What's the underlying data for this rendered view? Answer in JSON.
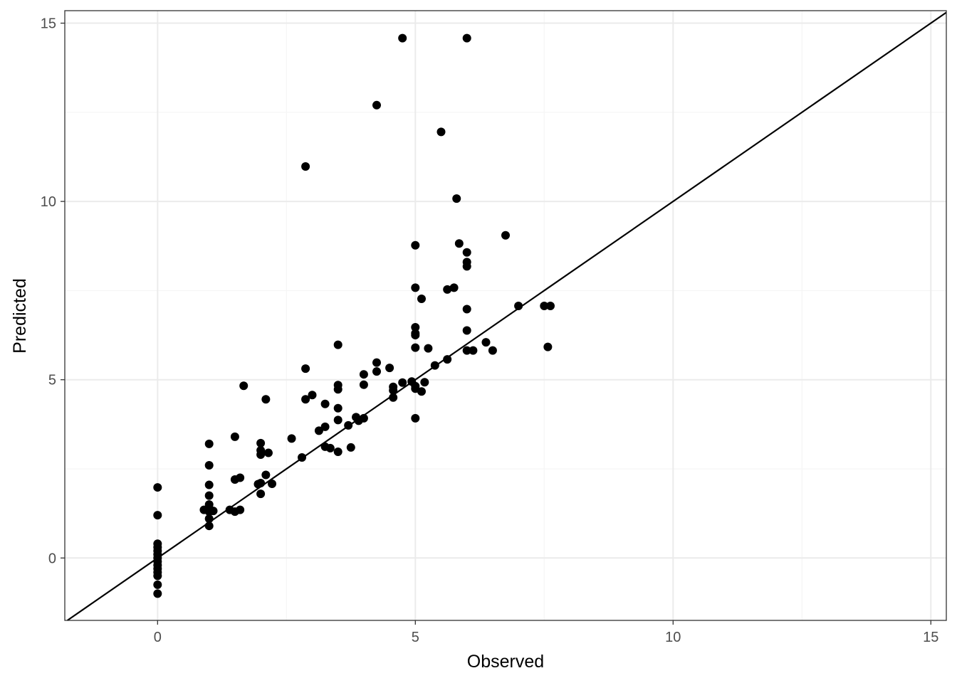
{
  "chart_data": {
    "type": "scatter",
    "xlabel": "Observed",
    "ylabel": "Predicted",
    "xlim": [
      -1.8,
      15.3
    ],
    "ylim": [
      -1.75,
      15.35
    ],
    "x_ticks": [
      0,
      5,
      10,
      15
    ],
    "y_ticks": [
      0,
      5,
      10,
      15
    ],
    "x_tick_labels": [
      "0",
      "5",
      "10",
      "15"
    ],
    "y_tick_labels": [
      "0",
      "5",
      "10",
      "15"
    ],
    "grid": true,
    "reference_line": {
      "type": "identity",
      "slope": 1,
      "intercept": 0
    },
    "colors": {
      "points": "#000000",
      "line": "#000000",
      "grid_major": "#ebebeb",
      "grid_minor": "#f5f5f5",
      "panel_border": "#333333"
    },
    "points": [
      {
        "x": 0,
        "y": 1.98
      },
      {
        "x": 0,
        "y": 1.2
      },
      {
        "x": 0,
        "y": 0.4
      },
      {
        "x": 0,
        "y": 0.3
      },
      {
        "x": 0,
        "y": 0.2
      },
      {
        "x": 0,
        "y": 0.1
      },
      {
        "x": 0,
        "y": 0.0
      },
      {
        "x": 0,
        "y": -0.1
      },
      {
        "x": 0,
        "y": -0.2
      },
      {
        "x": 0,
        "y": -0.3
      },
      {
        "x": 0,
        "y": -0.4
      },
      {
        "x": 0,
        "y": -0.5
      },
      {
        "x": 0,
        "y": -0.75
      },
      {
        "x": 0,
        "y": -1.0
      },
      {
        "x": 0.9,
        "y": 1.35
      },
      {
        "x": 1.0,
        "y": 3.2
      },
      {
        "x": 1.0,
        "y": 2.6
      },
      {
        "x": 1.0,
        "y": 2.05
      },
      {
        "x": 1.0,
        "y": 1.75
      },
      {
        "x": 1.0,
        "y": 1.5
      },
      {
        "x": 1.0,
        "y": 1.38
      },
      {
        "x": 1.0,
        "y": 1.3
      },
      {
        "x": 1.0,
        "y": 1.1
      },
      {
        "x": 1.0,
        "y": 0.9
      },
      {
        "x": 1.08,
        "y": 1.32
      },
      {
        "x": 1.4,
        "y": 1.35
      },
      {
        "x": 1.5,
        "y": 3.4
      },
      {
        "x": 1.5,
        "y": 2.2
      },
      {
        "x": 1.5,
        "y": 1.3
      },
      {
        "x": 1.6,
        "y": 2.25
      },
      {
        "x": 1.6,
        "y": 1.35
      },
      {
        "x": 1.67,
        "y": 4.83
      },
      {
        "x": 1.95,
        "y": 2.07
      },
      {
        "x": 2.0,
        "y": 3.22
      },
      {
        "x": 2.0,
        "y": 3.02
      },
      {
        "x": 2.0,
        "y": 2.9
      },
      {
        "x": 2.0,
        "y": 2.1
      },
      {
        "x": 2.0,
        "y": 1.8
      },
      {
        "x": 2.1,
        "y": 4.45
      },
      {
        "x": 2.1,
        "y": 2.33
      },
      {
        "x": 2.15,
        "y": 2.95
      },
      {
        "x": 2.22,
        "y": 2.08
      },
      {
        "x": 2.6,
        "y": 3.35
      },
      {
        "x": 2.8,
        "y": 2.82
      },
      {
        "x": 2.87,
        "y": 10.98
      },
      {
        "x": 2.87,
        "y": 5.31
      },
      {
        "x": 2.87,
        "y": 4.45
      },
      {
        "x": 3.0,
        "y": 4.57
      },
      {
        "x": 3.13,
        "y": 3.57
      },
      {
        "x": 3.25,
        "y": 4.32
      },
      {
        "x": 3.25,
        "y": 3.68
      },
      {
        "x": 3.25,
        "y": 3.12
      },
      {
        "x": 3.35,
        "y": 3.08
      },
      {
        "x": 3.5,
        "y": 5.98
      },
      {
        "x": 3.5,
        "y": 4.85
      },
      {
        "x": 3.5,
        "y": 4.73
      },
      {
        "x": 3.5,
        "y": 4.2
      },
      {
        "x": 3.5,
        "y": 3.87
      },
      {
        "x": 3.5,
        "y": 2.98
      },
      {
        "x": 3.7,
        "y": 3.72
      },
      {
        "x": 3.75,
        "y": 3.1
      },
      {
        "x": 3.85,
        "y": 3.95
      },
      {
        "x": 3.9,
        "y": 3.85
      },
      {
        "x": 4.0,
        "y": 5.15
      },
      {
        "x": 4.0,
        "y": 4.86
      },
      {
        "x": 4.0,
        "y": 3.92
      },
      {
        "x": 4.25,
        "y": 12.7
      },
      {
        "x": 4.25,
        "y": 5.48
      },
      {
        "x": 4.25,
        "y": 5.23
      },
      {
        "x": 4.5,
        "y": 5.33
      },
      {
        "x": 4.57,
        "y": 4.8
      },
      {
        "x": 4.57,
        "y": 4.7
      },
      {
        "x": 4.57,
        "y": 4.5
      },
      {
        "x": 4.75,
        "y": 14.58
      },
      {
        "x": 4.75,
        "y": 4.92
      },
      {
        "x": 4.93,
        "y": 4.95
      },
      {
        "x": 5.0,
        "y": 8.77
      },
      {
        "x": 5.0,
        "y": 7.58
      },
      {
        "x": 5.0,
        "y": 6.47
      },
      {
        "x": 5.0,
        "y": 6.3
      },
      {
        "x": 5.0,
        "y": 6.25
      },
      {
        "x": 5.0,
        "y": 5.9
      },
      {
        "x": 5.0,
        "y": 4.82
      },
      {
        "x": 5.0,
        "y": 4.75
      },
      {
        "x": 5.0,
        "y": 3.92
      },
      {
        "x": 5.12,
        "y": 7.27
      },
      {
        "x": 5.12,
        "y": 4.67
      },
      {
        "x": 5.18,
        "y": 4.93
      },
      {
        "x": 5.25,
        "y": 5.88
      },
      {
        "x": 5.38,
        "y": 5.4
      },
      {
        "x": 5.5,
        "y": 11.95
      },
      {
        "x": 5.62,
        "y": 5.57
      },
      {
        "x": 5.62,
        "y": 7.53
      },
      {
        "x": 5.75,
        "y": 7.58
      },
      {
        "x": 5.8,
        "y": 10.08
      },
      {
        "x": 5.85,
        "y": 8.82
      },
      {
        "x": 6.0,
        "y": 14.58
      },
      {
        "x": 6.0,
        "y": 8.57
      },
      {
        "x": 6.0,
        "y": 8.3
      },
      {
        "x": 6.0,
        "y": 8.18
      },
      {
        "x": 6.0,
        "y": 6.98
      },
      {
        "x": 6.0,
        "y": 6.38
      },
      {
        "x": 6.0,
        "y": 5.82
      },
      {
        "x": 6.12,
        "y": 5.82
      },
      {
        "x": 6.37,
        "y": 6.05
      },
      {
        "x": 6.5,
        "y": 5.82
      },
      {
        "x": 6.75,
        "y": 9.05
      },
      {
        "x": 7.0,
        "y": 7.07
      },
      {
        "x": 7.5,
        "y": 7.07
      },
      {
        "x": 7.62,
        "y": 7.07
      },
      {
        "x": 7.57,
        "y": 5.92
      }
    ]
  }
}
